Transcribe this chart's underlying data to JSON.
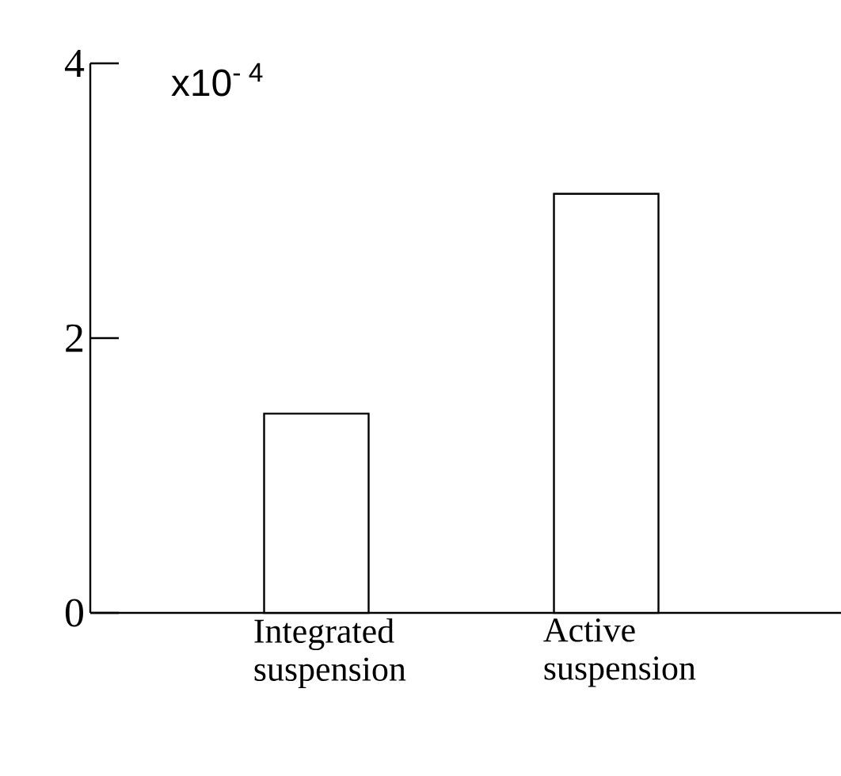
{
  "chart_data": {
    "type": "bar",
    "categories": [
      "Integrated suspension",
      "Active suspension"
    ],
    "values": [
      1.45,
      3.05
    ],
    "color": "#ffffff",
    "ylim": [
      0,
      4
    ],
    "yticks": [
      0,
      2,
      4
    ],
    "annotations": [
      "x10$^{- 4}$"
    ]
  }
}
